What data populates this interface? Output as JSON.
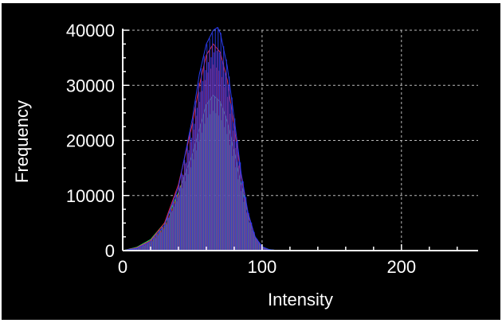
{
  "chart_data": {
    "type": "area",
    "title": "",
    "xlabel": "Intensity",
    "ylabel": "Frequency",
    "xlim": [
      0,
      255
    ],
    "ylim": [
      0,
      40000
    ],
    "x_ticks": [
      0,
      100,
      200
    ],
    "y_ticks": [
      0,
      10000,
      20000,
      30000,
      40000
    ],
    "grid": true,
    "legend": "none",
    "background_color": "#000000",
    "foreground_color": "#ffffff",
    "series": [
      {
        "color": "#2bd36a",
        "x": [
          0,
          10,
          20,
          30,
          40,
          50,
          55,
          60,
          65,
          70,
          75,
          80,
          85,
          90,
          95,
          100,
          105,
          110,
          120,
          140,
          255
        ],
        "values": [
          0,
          600,
          2000,
          5000,
          10500,
          17500,
          22000,
          26500,
          28200,
          27000,
          23500,
          18000,
          12000,
          6500,
          2500,
          700,
          200,
          50,
          0,
          0,
          0
        ]
      },
      {
        "color": "#e02a4a",
        "x": [
          0,
          10,
          20,
          30,
          40,
          50,
          55,
          60,
          65,
          70,
          75,
          80,
          85,
          90,
          95,
          100,
          105,
          110,
          120,
          140,
          255
        ],
        "values": [
          0,
          500,
          1800,
          5000,
          12000,
          23000,
          30000,
          35500,
          37500,
          36000,
          31000,
          22500,
          13500,
          6500,
          2300,
          600,
          150,
          40,
          0,
          0,
          0
        ]
      },
      {
        "color": "#2a3cf0",
        "x": [
          0,
          10,
          20,
          30,
          40,
          50,
          55,
          60,
          65,
          68,
          70,
          75,
          80,
          85,
          90,
          95,
          100,
          105,
          110,
          120,
          140,
          255
        ],
        "values": [
          0,
          400,
          1600,
          4600,
          11500,
          24000,
          32000,
          37500,
          40000,
          40500,
          39500,
          33500,
          24000,
          14000,
          6800,
          2500,
          700,
          180,
          50,
          0,
          0,
          0
        ]
      }
    ]
  }
}
